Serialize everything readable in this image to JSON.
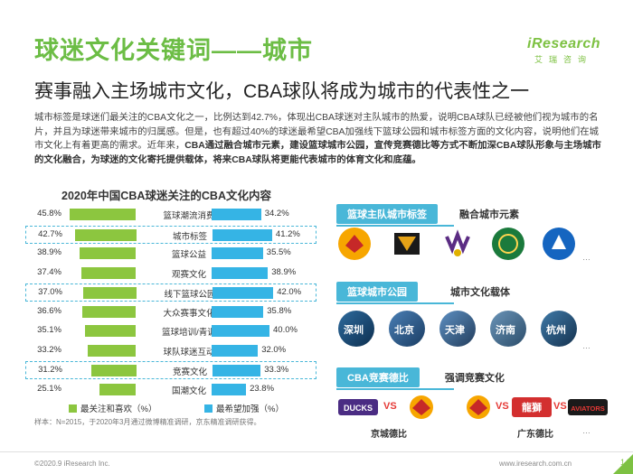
{
  "header": {
    "title": "球迷文化关键词——城市",
    "logo_main": "iResearch",
    "logo_sub": "艾瑞咨询"
  },
  "subtitle": "赛事融入主场城市文化，CBA球队将成为城市的代表性之一",
  "body": {
    "p1": "城市标签是球迷们最关注的CBA文化之一，比例达到42.7%，体现出CBA球迷对主队城市的热爱，说明CBA球队已经被他们视为城市的名片，并且为球迷带来城市的归属感。但是，也有超过40%的球迷最希望CBA加强线下篮球公园和城市标签方面的文化内容，说明他们在城市文化上有着更高的需求。近年来，",
    "p2_bold": "CBA通过融合城市元素，建设篮球城市公园，宣传竞赛德比等方式不断加深CBA球队形象与主场城市的文化融合，为球迷的文化寄托提供载体，将来CBA球队将更能代表城市的体育文化和底蕴。"
  },
  "chart_data": {
    "type": "bar",
    "title": "2020年中国CBA球迷关注的CBA文化内容",
    "categories": [
      "篮球潮流消费",
      "城市标签",
      "篮球公益",
      "观赛文化",
      "线下篮球公园",
      "大众赛事文化",
      "篮球培训/青训",
      "球队球迷互动",
      "竞赛文化",
      "国潮文化"
    ],
    "series": [
      {
        "name": "最关注和喜欢（%）",
        "color": "#8cc63f",
        "values": [
          45.8,
          42.7,
          38.9,
          37.4,
          37.0,
          36.6,
          35.1,
          33.2,
          31.2,
          25.1
        ]
      },
      {
        "name": "最希望加强（%）",
        "color": "#35b4e5",
        "values": [
          34.2,
          41.2,
          35.5,
          38.9,
          42.0,
          35.8,
          40.0,
          32.0,
          33.3,
          23.8
        ]
      }
    ],
    "highlighted": [
      "城市标签",
      "线下篮球公园",
      "竞赛文化"
    ],
    "left_labels": [
      "45.8%",
      "42.7%",
      "38.9%",
      "37.4%",
      "37.0%",
      "36.6%",
      "35.1%",
      "33.2%",
      "31.2%",
      "25.1%"
    ],
    "right_labels": [
      "34.2%",
      "41.2%",
      "35.5%",
      "38.9%",
      "42.0%",
      "35.8%",
      "40.0%",
      "32.0%",
      "33.3%",
      "23.8%"
    ]
  },
  "right_panel": {
    "section1": {
      "tag": "篮球主队城市标签",
      "note": "融合城市元素",
      "logos": [
        "GUANGDONG",
        "ARMY",
        "KINGS",
        "山东",
        "PIONEERS"
      ],
      "more": "…"
    },
    "section2": {
      "tag": "篮球城市公园",
      "note": "城市文化载体",
      "cities": [
        "深圳",
        "北京",
        "天津",
        "济南",
        "杭州"
      ],
      "more": "…"
    },
    "section3": {
      "tag": "CBA竞赛德比",
      "note": "强调竞赛文化",
      "derby1": {
        "a": "DUCKS",
        "b": "GUANGDONG",
        "label": "京城德比",
        "vs": "VS"
      },
      "derby2": {
        "a": "GUANGDONG",
        "b": "龍獅",
        "c": "AVIATORS",
        "label": "广东德比",
        "vs": "VS"
      },
      "more": "…"
    }
  },
  "note": "样本：N=2015，于2020年3月通过微博精准调研，京东精准调研获得。",
  "footer": {
    "left": "©2020.9 iResearch Inc.",
    "right": "www.iresearch.com.cn",
    "page": "14"
  },
  "colors": {
    "brand_green": "#7dc142",
    "bar_green": "#8cc63f",
    "bar_blue": "#35b4e5",
    "tag_blue": "#49b7d8"
  }
}
